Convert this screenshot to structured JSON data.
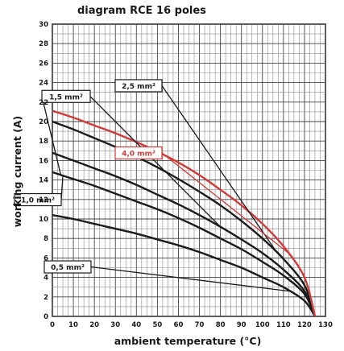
{
  "chart_data": {
    "type": "line",
    "title": "diagram RCE 16 poles",
    "xlabel": "ambient temperature (°C)",
    "ylabel": "working current (A)",
    "xlim": [
      0,
      130
    ],
    "ylim": [
      0,
      30
    ],
    "x_ticks": [
      0,
      10,
      20,
      30,
      40,
      50,
      60,
      70,
      80,
      90,
      100,
      110,
      120,
      130
    ],
    "y_ticks": [
      0,
      2,
      4,
      6,
      8,
      10,
      12,
      14,
      16,
      18,
      20,
      22,
      24,
      26,
      28,
      30
    ],
    "grid": true,
    "series": [
      {
        "name": "4,0 mm²",
        "color": "#d23a3a",
        "x": [
          0,
          10,
          20,
          30,
          40,
          50,
          60,
          70,
          80,
          90,
          100,
          110,
          120,
          125
        ],
        "y": [
          21.1,
          20.4,
          19.6,
          18.8,
          17.9,
          16.9,
          15.8,
          14.5,
          13.0,
          11.4,
          9.5,
          7.2,
          4.0,
          0
        ]
      },
      {
        "name": "2,5 mm²",
        "color": "#1a1a1a",
        "x": [
          0,
          10,
          20,
          30,
          40,
          50,
          60,
          70,
          80,
          90,
          100,
          110,
          120,
          125
        ],
        "y": [
          20.0,
          19.2,
          18.3,
          17.4,
          16.4,
          15.3,
          14.1,
          12.8,
          11.4,
          9.8,
          8.0,
          5.9,
          3.2,
          0
        ]
      },
      {
        "name": "1,5 mm²",
        "color": "#1a1a1a",
        "x": [
          0,
          10,
          20,
          30,
          40,
          50,
          60,
          70,
          80,
          90,
          100,
          110,
          120,
          125
        ],
        "y": [
          16.8,
          16.0,
          15.2,
          14.4,
          13.5,
          12.5,
          11.5,
          10.4,
          9.2,
          7.9,
          6.5,
          4.8,
          2.6,
          0
        ]
      },
      {
        "name": "1,0 mm²",
        "color": "#1a1a1a",
        "x": [
          0,
          10,
          20,
          30,
          40,
          50,
          60,
          70,
          80,
          90,
          100,
          110,
          120,
          125
        ],
        "y": [
          14.8,
          14.1,
          13.4,
          12.6,
          11.8,
          11.0,
          10.1,
          9.1,
          8.0,
          6.9,
          5.6,
          4.2,
          2.3,
          0
        ]
      },
      {
        "name": "0,5 mm²",
        "color": "#1a1a1a",
        "x": [
          0,
          10,
          20,
          30,
          40,
          50,
          60,
          70,
          80,
          90,
          100,
          110,
          120,
          125
        ],
        "y": [
          10.4,
          10.0,
          9.5,
          9.0,
          8.5,
          7.9,
          7.3,
          6.6,
          5.8,
          5.0,
          4.0,
          3.0,
          1.6,
          0
        ]
      }
    ],
    "annotations": [
      {
        "label": "1,5 mm²",
        "series": "1,5 mm²"
      },
      {
        "label": "2,5 mm²",
        "series": "2,5 mm²"
      },
      {
        "label": "4,0 mm²",
        "series": "4,0 mm²"
      },
      {
        "label": "1,0 mm²",
        "series": "1,0 mm²"
      },
      {
        "label": "0,5 mm²",
        "series": "0,5 mm²"
      }
    ]
  }
}
